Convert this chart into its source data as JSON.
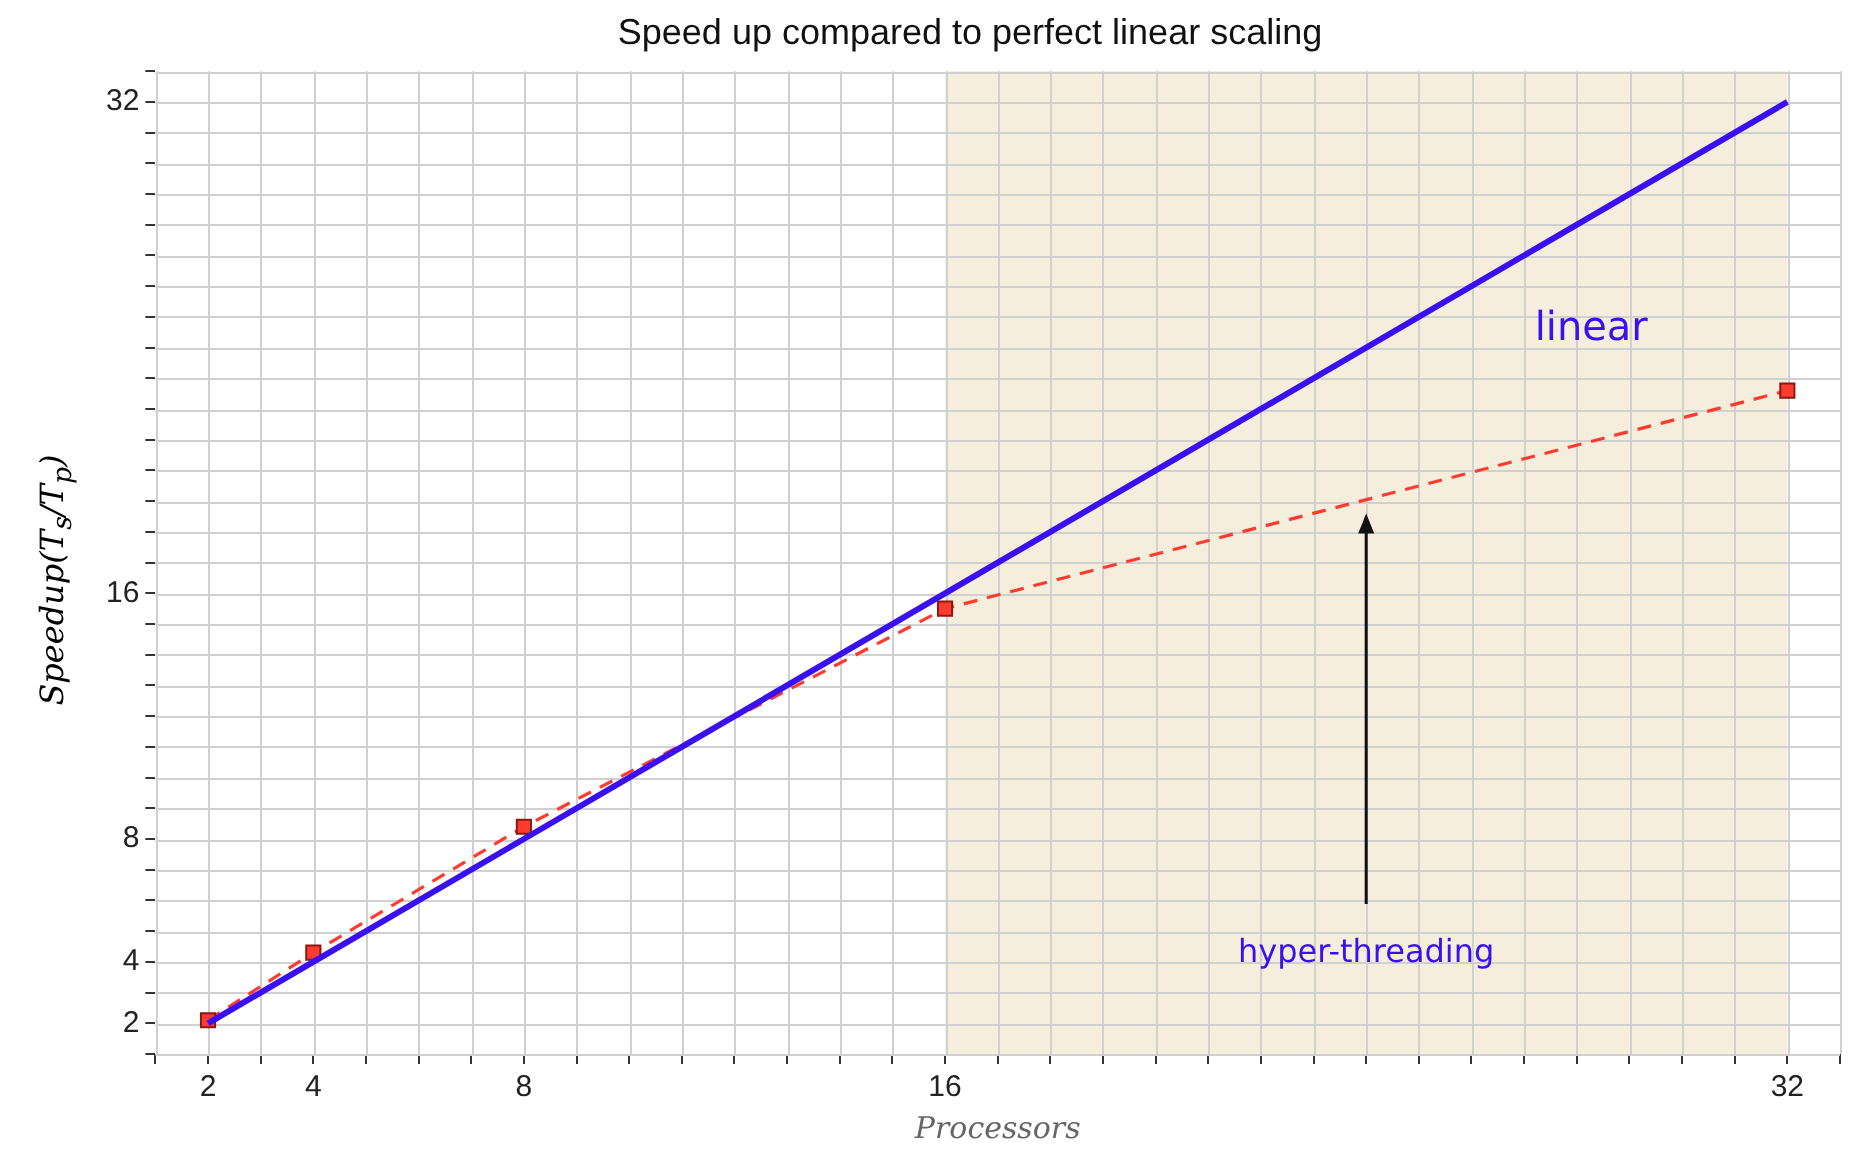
{
  "chart_data": {
    "type": "line",
    "title": "Speed up compared to perfect linear scaling",
    "xlabel": "Processors",
    "ylabel": "Speedup(T$_{s}$/T$_{p}$)",
    "x": [
      2,
      4,
      8,
      16,
      32
    ],
    "series": [
      {
        "name": "linear",
        "color": "#3a10f0",
        "values": [
          2,
          4,
          8,
          16,
          32
        ],
        "marker": "none",
        "line_style": "solid"
      },
      {
        "color": "#ff3b30",
        "values": [
          2.1,
          4.3,
          8.4,
          15.5,
          22.6
        ],
        "marker": "square",
        "line_style": "dashed"
      }
    ],
    "xlim": [
      1,
      33
    ],
    "xticks": [
      {
        "value": 1,
        "label": null
      },
      2,
      {
        "value": 3,
        "label": null
      },
      4,
      {
        "value": 5,
        "label": null
      },
      {
        "value": 6,
        "label": null
      },
      {
        "value": 7,
        "label": null
      },
      8,
      {
        "value": 9,
        "label": null
      },
      {
        "value": 10,
        "label": null
      },
      {
        "value": 11,
        "label": null
      },
      {
        "value": 12,
        "label": null
      },
      {
        "value": 13,
        "label": null
      },
      {
        "value": 14,
        "label": null
      },
      {
        "value": 15,
        "label": null
      },
      16,
      {
        "value": 17,
        "label": null
      },
      {
        "value": 18,
        "label": null
      },
      {
        "value": 19,
        "label": null
      },
      {
        "value": 20,
        "label": null
      },
      {
        "value": 21,
        "label": null
      },
      {
        "value": 22,
        "label": null
      },
      {
        "value": 23,
        "label": null
      },
      {
        "value": 24,
        "label": null
      },
      {
        "value": 25,
        "label": null
      },
      {
        "value": 26,
        "label": null
      },
      {
        "value": 27,
        "label": null
      },
      {
        "value": 28,
        "label": null
      },
      {
        "value": 29,
        "label": null
      },
      {
        "value": 30,
        "label": null
      },
      {
        "value": 31,
        "label": null
      },
      32,
      {
        "value": 33,
        "label": null
      }
    ],
    "ylim": [
      1,
      33
    ],
    "yticks": [
      {
        "value": 1,
        "label": null
      },
      2,
      {
        "value": 3,
        "label": null
      },
      4,
      {
        "value": 5,
        "label": null
      },
      {
        "value": 6,
        "label": null
      },
      {
        "value": 7,
        "label": null
      },
      8,
      {
        "value": 9,
        "label": null
      },
      {
        "value": 10,
        "label": null
      },
      {
        "value": 11,
        "label": null
      },
      {
        "value": 12,
        "label": null
      },
      {
        "value": 13,
        "label": null
      },
      {
        "value": 14,
        "label": null
      },
      {
        "value": 15,
        "label": null
      },
      16,
      {
        "value": 17,
        "label": null
      },
      {
        "value": 18,
        "label": null
      },
      {
        "value": 19,
        "label": null
      },
      {
        "value": 20,
        "label": null
      },
      {
        "value": 21,
        "label": null
      },
      {
        "value": 22,
        "label": null
      },
      {
        "value": 23,
        "label": null
      },
      {
        "value": 24,
        "label": null
      },
      {
        "value": 25,
        "label": null
      },
      {
        "value": 26,
        "label": null
      },
      {
        "value": 27,
        "label": null
      },
      {
        "value": 28,
        "label": null
      },
      {
        "value": 29,
        "label": null
      },
      {
        "value": 30,
        "label": null
      },
      {
        "value": 31,
        "label": null
      },
      32,
      {
        "value": 33,
        "label": null
      }
    ],
    "bands": [
      {
        "axis": "x",
        "from": 16,
        "to": 32,
        "color": "#f6eedc"
      }
    ],
    "annotations": [
      "hyper-threading"
    ],
    "grid": true,
    "legend": false
  }
}
